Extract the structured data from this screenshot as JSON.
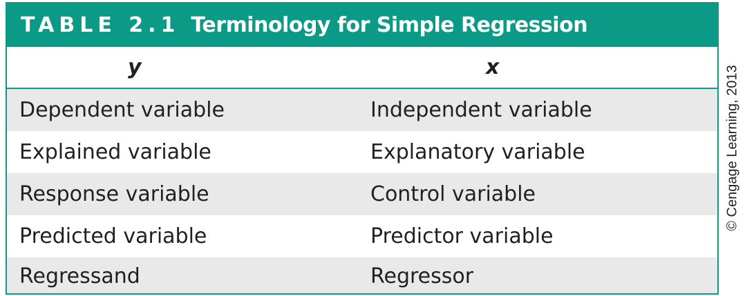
{
  "title": {
    "number": "TABLE 2.1",
    "text": "Terminology for Simple Regression"
  },
  "columns": [
    "y",
    "x"
  ],
  "rows": [
    [
      "Dependent variable",
      "Independent variable"
    ],
    [
      "Explained variable",
      "Explanatory variable"
    ],
    [
      "Response variable",
      "Control variable"
    ],
    [
      "Predicted variable",
      "Predictor variable"
    ],
    [
      "Regressand",
      "Regressor"
    ]
  ],
  "copyright": "© Cengage Learning, 2013",
  "colors": {
    "accent": "#0b9a85",
    "row_shade": "#e9e9ea",
    "text": "#231f20"
  }
}
